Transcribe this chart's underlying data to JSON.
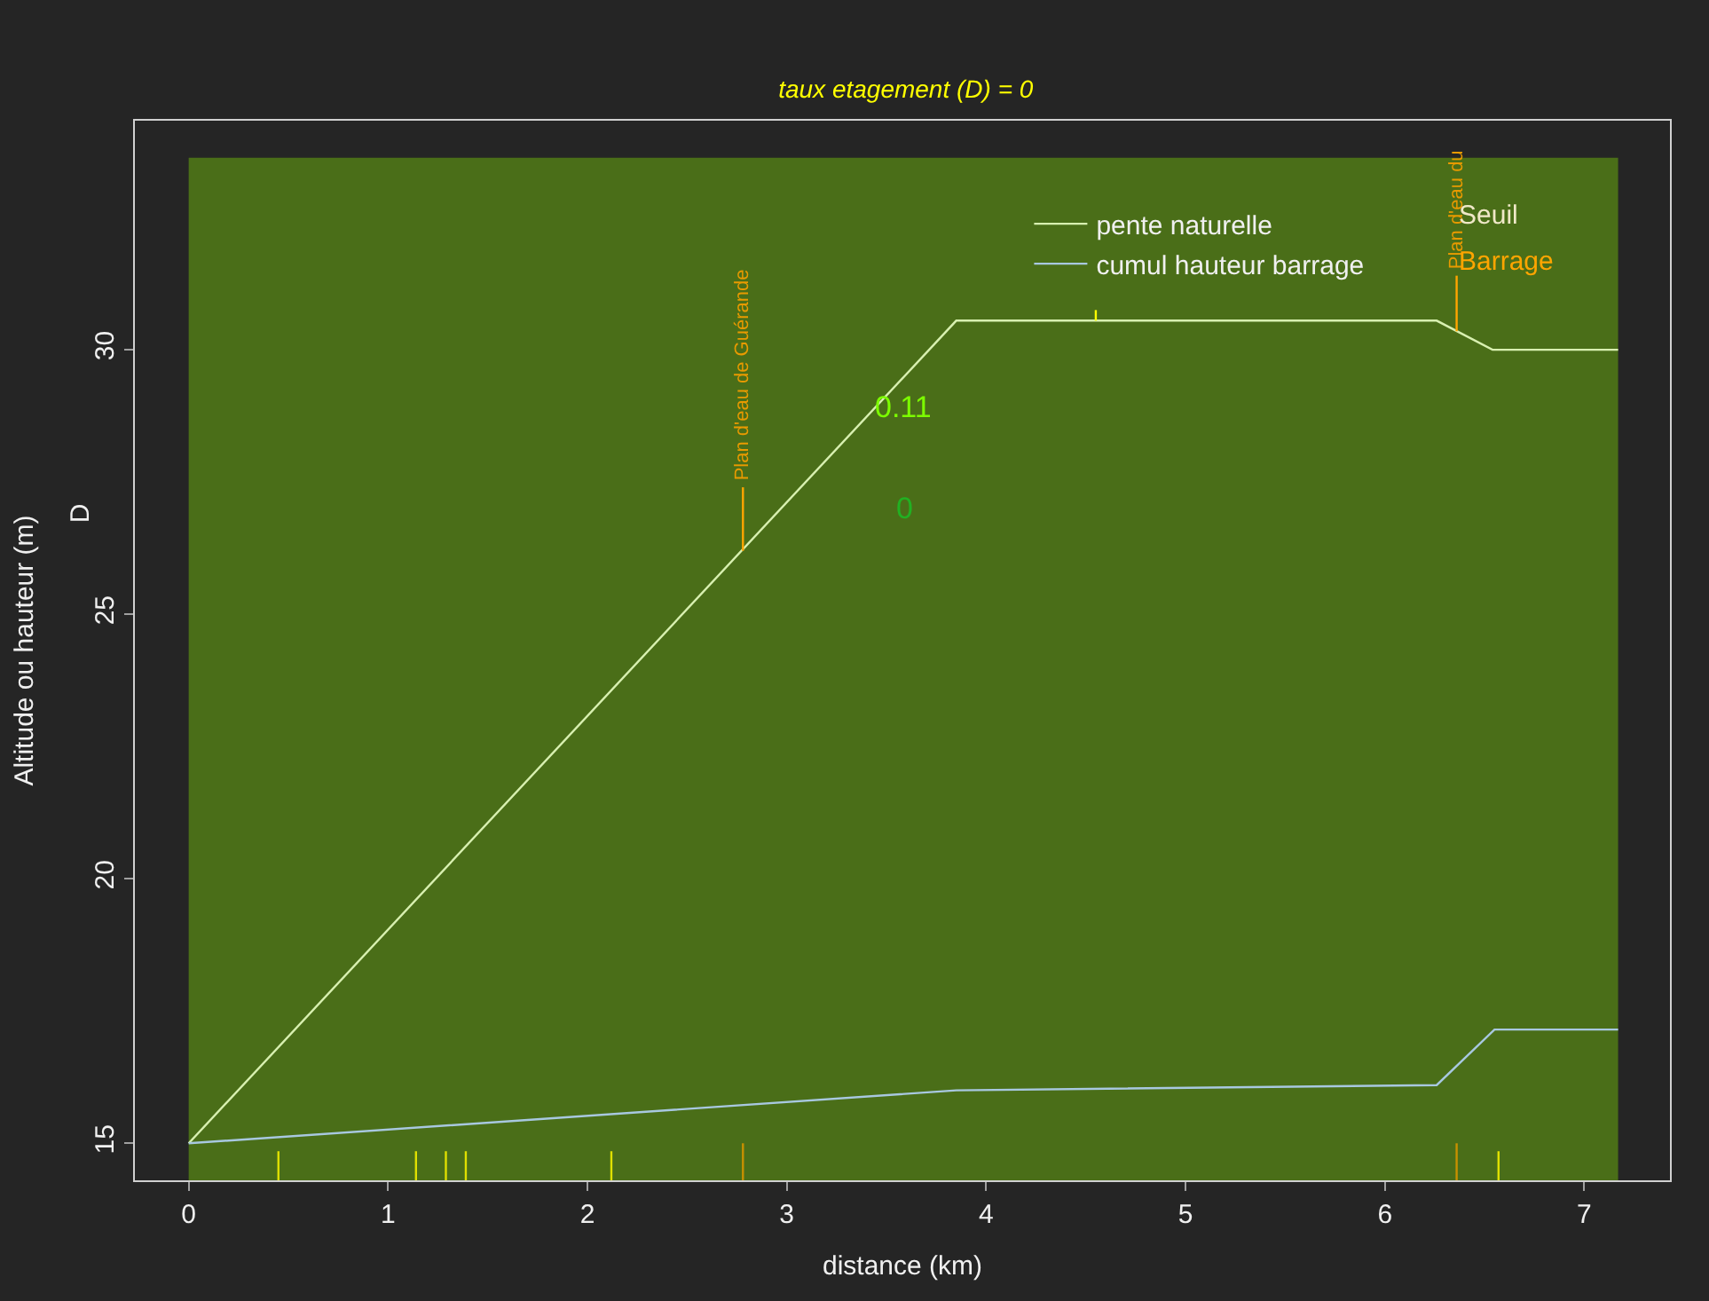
{
  "chart_data": {
    "type": "line",
    "title": "taux etagement (D) = 0",
    "xlabel": "distance (km)",
    "ylabel": "Altitude ou hauteur (m)",
    "xlim": [
      -0.27,
      7.43
    ],
    "ylim": [
      14.3,
      34.33
    ],
    "xticks": [
      0,
      1,
      2,
      3,
      4,
      5,
      6,
      7
    ],
    "yticks": [
      15,
      20,
      25,
      30
    ],
    "grid": false,
    "legend": "top right",
    "bands": [
      {
        "axis": "x",
        "from": 0,
        "to": 7.17,
        "color": "#4a6e18"
      }
    ],
    "series": [
      {
        "name": "pente naturelle",
        "color": "#d8f0b0",
        "x": [
          0,
          3.85,
          6.26,
          6.54,
          7.17
        ],
        "values": [
          15,
          30.55,
          30.55,
          30.0,
          30.0
        ]
      },
      {
        "name": "cumul hauteur barrage",
        "color": "#a8c8e0",
        "x": [
          0,
          3.85,
          6.26,
          6.55,
          7.17
        ],
        "values": [
          15,
          16.0,
          16.1,
          17.15,
          17.15
        ]
      },
      {
        "type": "line",
        "color": "#ffa500",
        "x": [
          2.78,
          2.78
        ],
        "values": [
          26.2,
          27.4
        ]
      },
      {
        "type": "line",
        "color": "#ffa500",
        "x": [
          6.36,
          6.36
        ],
        "values": [
          30.35,
          31.4
        ]
      },
      {
        "type": "line",
        "color": "#e0e000",
        "x": [
          0.45,
          0.45
        ],
        "values": [
          14.3,
          14.85
        ]
      },
      {
        "type": "line",
        "color": "#e0e000",
        "x": [
          1.14,
          1.14
        ],
        "values": [
          14.3,
          14.85
        ]
      },
      {
        "type": "line",
        "color": "#e0e000",
        "x": [
          1.29,
          1.29
        ],
        "values": [
          14.3,
          14.85
        ]
      },
      {
        "type": "line",
        "color": "#e0e000",
        "x": [
          1.39,
          1.39
        ],
        "values": [
          14.3,
          14.85
        ]
      },
      {
        "type": "line",
        "color": "#e0e000",
        "x": [
          2.12,
          2.12
        ],
        "values": [
          14.3,
          14.85
        ]
      },
      {
        "type": "line",
        "color": "#e0e000",
        "x": [
          6.57,
          6.57
        ],
        "values": [
          14.3,
          14.85
        ]
      },
      {
        "type": "line",
        "color": "#c89000",
        "x": [
          2.78,
          2.78
        ],
        "values": [
          14.3,
          15.0
        ]
      },
      {
        "type": "line",
        "color": "#c89000",
        "x": [
          6.36,
          6.36
        ],
        "values": [
          14.3,
          15.0
        ]
      },
      {
        "type": "line",
        "color": "#ffff00",
        "x": [
          4.55,
          4.55
        ],
        "values": [
          30.55,
          30.75
        ]
      }
    ],
    "annotations": [
      "0.11",
      "0",
      {
        "text": "Plan d'eau de Guérande",
        "x": 2.78,
        "y": 27.4
      },
      {
        "text": "Plan d'eau du",
        "x": 6.36,
        "y": 31.4
      },
      "D",
      "Seuil",
      "Barrage"
    ]
  }
}
